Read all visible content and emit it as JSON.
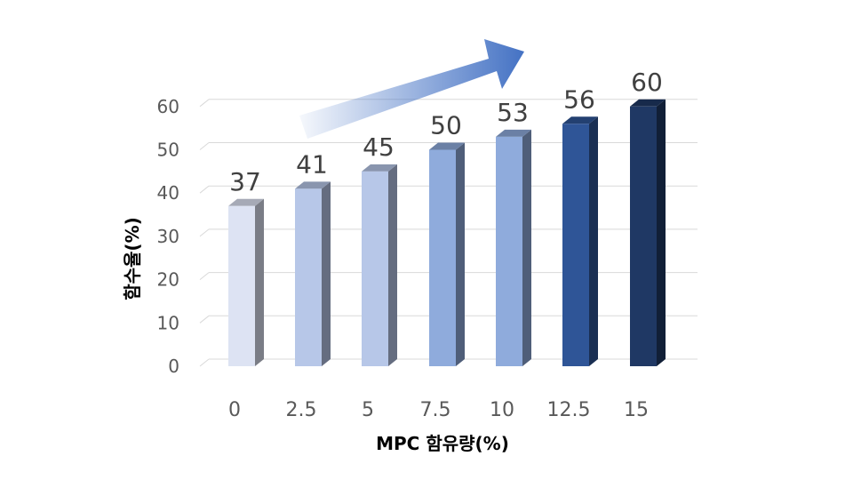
{
  "chart_data": {
    "type": "bar",
    "style": "3d-column",
    "categories": [
      "0",
      "2.5",
      "5",
      "7.5",
      "10",
      "12.5",
      "15"
    ],
    "values": [
      37,
      41,
      45,
      50,
      53,
      56,
      60
    ],
    "data_labels": [
      "37",
      "41",
      "45",
      "50",
      "53",
      "56",
      "60"
    ],
    "bar_colors": [
      "#dde3f3",
      "#b7c7e8",
      "#b7c7e8",
      "#8fabdc",
      "#8fabdc",
      "#2f5597",
      "#1f3864"
    ],
    "xlabel": "MPC 함유량(%)",
    "ylabel": "함수율(%)",
    "ylim": [
      0,
      60
    ],
    "yticks": [
      "0",
      "10",
      "20",
      "30",
      "40",
      "50",
      "60"
    ],
    "grid": true,
    "legend": "none",
    "annotation": "increasing-trend-arrow"
  }
}
